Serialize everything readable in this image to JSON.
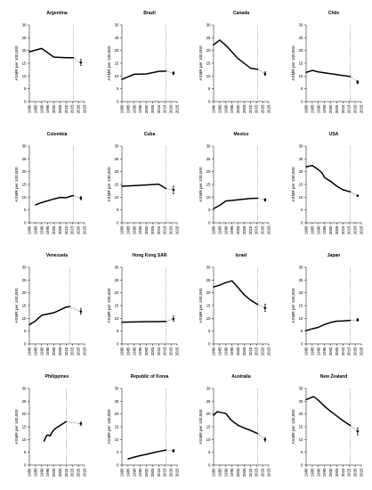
{
  "chart_data": [
    {
      "type": "line",
      "title": "Argentina",
      "ylabel": "ASMR per 100,000",
      "ylim": [
        0,
        30
      ],
      "xlim": [
        1980,
        2025
      ],
      "x_ticks": [
        "1980",
        "1985",
        "1990",
        "1995",
        "2000",
        "2005",
        "2010",
        "2015",
        "2020",
        "2025"
      ],
      "y_ticks": [
        "0",
        "5",
        "10",
        "15",
        "20",
        "25",
        "30"
      ],
      "reference_line_x": 2016,
      "series": [
        {
          "x": [
            1980,
            1990,
            2000,
            2010,
            2016
          ],
          "values": [
            19.5,
            20.8,
            17.4,
            17.2,
            17.2
          ]
        }
      ],
      "projection": {
        "x": [
          2016,
          2022
        ],
        "values": [
          17.2,
          15.3
        ],
        "error": [
          14.2,
          16.5
        ]
      }
    },
    {
      "type": "line",
      "title": "Brazil",
      "ylabel": "ASMR per 100,000",
      "ylim": [
        0,
        30
      ],
      "xlim": [
        1980,
        2025
      ],
      "x_ticks": [
        "1980",
        "1985",
        "1990",
        "1995",
        "2000",
        "2005",
        "2010",
        "2015",
        "2020",
        "2025"
      ],
      "y_ticks": [
        "0",
        "5",
        "10",
        "15",
        "20",
        "25",
        "30"
      ],
      "reference_line_x": 2016,
      "series": [
        {
          "x": [
            1980,
            1990,
            2000,
            2010,
            2016
          ],
          "values": [
            8.7,
            10.7,
            10.8,
            11.8,
            11.9
          ]
        }
      ],
      "projection": {
        "x": [
          2016,
          2022
        ],
        "values": [
          11.9,
          11.1
        ],
        "error": [
          10.5,
          11.7
        ]
      }
    },
    {
      "type": "line",
      "title": "Canada",
      "ylabel": "ASMR per 100,000",
      "ylim": [
        0,
        30
      ],
      "xlim": [
        1980,
        2025
      ],
      "x_ticks": [
        "1980",
        "1985",
        "1990",
        "1995",
        "2000",
        "2005",
        "2010",
        "2015",
        "2020",
        "2025"
      ],
      "y_ticks": [
        "0",
        "5",
        "10",
        "15",
        "20",
        "25",
        "30"
      ],
      "reference_line_x": 2016,
      "series": [
        {
          "x": [
            1980,
            1985,
            1990,
            2000,
            2010,
            2016
          ],
          "values": [
            22.2,
            24.1,
            22.0,
            16.8,
            13.1,
            12.6
          ]
        }
      ],
      "projection": {
        "x": [
          2016,
          2022
        ],
        "values": [
          12.6,
          10.9
        ],
        "error": [
          10.2,
          11.6
        ]
      }
    },
    {
      "type": "line",
      "title": "Chile",
      "ylabel": "ASMR per 100,000",
      "ylim": [
        0,
        30
      ],
      "xlim": [
        1980,
        2025
      ],
      "x_ticks": [
        "1980",
        "1985",
        "1990",
        "1995",
        "2000",
        "2005",
        "2010",
        "2015",
        "2020",
        "2025"
      ],
      "y_ticks": [
        "0",
        "5",
        "10",
        "15",
        "20",
        "25",
        "30"
      ],
      "reference_line_x": 2016,
      "series": [
        {
          "x": [
            1980,
            1985,
            1990,
            2000,
            2010,
            2016
          ],
          "values": [
            11.4,
            12.2,
            11.6,
            10.9,
            10.2,
            9.8
          ]
        }
      ],
      "projection": {
        "x": [
          2016,
          2022
        ],
        "values": [
          9.8,
          7.6
        ],
        "error": [
          7.0,
          8.2
        ]
      }
    },
    {
      "type": "line",
      "title": "Colombia",
      "ylabel": "ASMR per 100,000",
      "ylim": [
        0,
        30
      ],
      "xlim": [
        1980,
        2025
      ],
      "x_ticks": [
        "1980",
        "1985",
        "1990",
        "1995",
        "2000",
        "2005",
        "2010",
        "2015",
        "2020",
        "2025"
      ],
      "y_ticks": [
        "0",
        "5",
        "10",
        "15",
        "20",
        "25",
        "30"
      ],
      "reference_line_x": 2016,
      "series": [
        {
          "x": [
            1985,
            1990,
            2000,
            2005,
            2010,
            2015,
            2016
          ],
          "values": [
            7.0,
            7.9,
            9.3,
            9.9,
            9.8,
            10.6,
            10.6
          ]
        }
      ],
      "projection": {
        "x": [
          2016,
          2022
        ],
        "values": [
          10.6,
          9.6
        ],
        "error": [
          9.0,
          10.3
        ]
      }
    },
    {
      "type": "line",
      "title": "Cuba",
      "ylabel": "ASMR per 100,000",
      "ylim": [
        0,
        30
      ],
      "xlim": [
        1980,
        2025
      ],
      "x_ticks": [
        "1980",
        "1985",
        "1990",
        "1995",
        "2000",
        "2005",
        "2010",
        "2015",
        "2020",
        "2025"
      ],
      "y_ticks": [
        "0",
        "5",
        "10",
        "15",
        "20",
        "25",
        "30"
      ],
      "reference_line_x": 2016,
      "series": [
        {
          "x": [
            1980,
            1990,
            2000,
            2010,
            2016
          ],
          "values": [
            14.3,
            14.5,
            14.8,
            15.1,
            13.4
          ]
        }
      ],
      "projection": {
        "x": [
          2016,
          2022
        ],
        "values": [
          13.4,
          12.9
        ],
        "error": [
          11.3,
          14.3
        ]
      }
    },
    {
      "type": "line",
      "title": "Mexico",
      "ylabel": "ASMR per 100,000",
      "ylim": [
        0,
        30
      ],
      "xlim": [
        1980,
        2025
      ],
      "x_ticks": [
        "1980",
        "1985",
        "1990",
        "1995",
        "2000",
        "2005",
        "2010",
        "2015",
        "2020",
        "2025"
      ],
      "y_ticks": [
        "0",
        "5",
        "10",
        "15",
        "20",
        "25",
        "30"
      ],
      "reference_line_x": 2016,
      "series": [
        {
          "x": [
            1980,
            1985,
            1990,
            2000,
            2010,
            2016
          ],
          "values": [
            5.5,
            6.8,
            8.5,
            9.0,
            9.5,
            9.6
          ]
        }
      ],
      "projection": {
        "x": [
          2016,
          2022
        ],
        "values": [
          9.6,
          9.0
        ],
        "error": [
          8.5,
          9.4
        ]
      }
    },
    {
      "type": "line",
      "title": "USA",
      "ylabel": "ASMR per 100,000",
      "ylim": [
        0,
        30
      ],
      "xlim": [
        1980,
        2025
      ],
      "x_ticks": [
        "1980",
        "1985",
        "1990",
        "1995",
        "2000",
        "2005",
        "2010",
        "2015",
        "2020",
        "2025"
      ],
      "y_ticks": [
        "0",
        "5",
        "10",
        "15",
        "20",
        "25",
        "30"
      ],
      "reference_line_x": 2016,
      "series": [
        {
          "x": [
            1980,
            1985,
            1990,
            1993,
            1995,
            2000,
            2005,
            2010,
            2016
          ],
          "values": [
            21.9,
            22.4,
            20.8,
            19.5,
            17.7,
            16.2,
            14.3,
            12.9,
            12.1
          ]
        }
      ],
      "projection": {
        "x": [
          2016,
          2022
        ],
        "values": [
          12.1,
          10.6
        ],
        "error": [
          10.3,
          10.9
        ]
      }
    },
    {
      "type": "line",
      "title": "Venezuela",
      "ylabel": "ASMR per 100,000",
      "ylim": [
        0,
        30
      ],
      "xlim": [
        1980,
        2025
      ],
      "x_ticks": [
        "1980",
        "1985",
        "1990",
        "1995",
        "2000",
        "2005",
        "2010",
        "2015",
        "2020",
        "2025"
      ],
      "y_ticks": [
        "0",
        "5",
        "10",
        "15",
        "20",
        "25",
        "30"
      ],
      "reference_line_x": 2013,
      "series": [
        {
          "x": [
            1980,
            1985,
            1990,
            2000,
            2010,
            2013
          ],
          "values": [
            7.5,
            9.0,
            11.2,
            12.2,
            14.4,
            14.6
          ]
        }
      ],
      "projection": {
        "x": [
          2013,
          2022
        ],
        "values": [
          14.6,
          12.7
        ],
        "error": [
          11.6,
          13.9
        ]
      }
    },
    {
      "type": "line",
      "title": "Hong Kong SAR",
      "ylabel": "ASMR per 100,000",
      "ylim": [
        0,
        30
      ],
      "xlim": [
        1980,
        2025
      ],
      "x_ticks": [
        "1980",
        "1985",
        "1990",
        "1995",
        "2000",
        "2005",
        "2010",
        "2015",
        "2020",
        "2025"
      ],
      "y_ticks": [
        "0",
        "5",
        "10",
        "15",
        "20",
        "25",
        "30"
      ],
      "reference_line_x": 2016,
      "series": [
        {
          "x": [
            1980,
            1990,
            2000,
            2010,
            2016
          ],
          "values": [
            8.5,
            8.6,
            8.7,
            8.7,
            8.8
          ]
        }
      ],
      "projection": {
        "x": [
          2016,
          2022
        ],
        "values": [
          8.8,
          9.8
        ],
        "error": [
          8.8,
          10.9
        ]
      }
    },
    {
      "type": "line",
      "title": "Israel",
      "ylabel": "ASMR per 100,000",
      "ylim": [
        0,
        30
      ],
      "xlim": [
        1980,
        2025
      ],
      "x_ticks": [
        "1980",
        "1985",
        "1990",
        "1995",
        "2000",
        "2005",
        "2010",
        "2015",
        "2020",
        "2025"
      ],
      "y_ticks": [
        "0",
        "5",
        "10",
        "15",
        "20",
        "25",
        "30"
      ],
      "reference_line_x": 2016,
      "series": [
        {
          "x": [
            1980,
            1985,
            1990,
            1995,
            2000,
            2005,
            2010,
            2016
          ],
          "values": [
            22.3,
            23.0,
            24.0,
            24.7,
            22.0,
            19.2,
            17.2,
            15.4
          ]
        }
      ],
      "projection": {
        "x": [
          2016,
          2022
        ],
        "values": [
          15.4,
          14.1
        ],
        "error": [
          12.8,
          15.5
        ]
      }
    },
    {
      "type": "line",
      "title": "Japan",
      "ylabel": "ASMR per 100,000",
      "ylim": [
        0,
        30
      ],
      "xlim": [
        1980,
        2025
      ],
      "x_ticks": [
        "1980",
        "1985",
        "1990",
        "1995",
        "2000",
        "2005",
        "2010",
        "2015",
        "2020",
        "2025"
      ],
      "y_ticks": [
        "0",
        "5",
        "10",
        "15",
        "20",
        "25",
        "30"
      ],
      "reference_line_x": 2016,
      "series": [
        {
          "x": [
            1980,
            1985,
            1990,
            1995,
            2000,
            2005,
            2010,
            2016
          ],
          "values": [
            5.2,
            5.9,
            6.5,
            7.6,
            8.4,
            8.9,
            9.0,
            9.2
          ]
        }
      ],
      "projection": {
        "x": [
          2016,
          2022
        ],
        "values": [
          9.2,
          9.4
        ],
        "error": [
          8.9,
          9.9
        ]
      }
    },
    {
      "type": "line",
      "title": "Philippines",
      "ylabel": "ASMR per 100,000",
      "ylim": [
        0,
        30
      ],
      "xlim": [
        1980,
        2025
      ],
      "x_ticks": [
        "1980",
        "1985",
        "1990",
        "1995",
        "2000",
        "2005",
        "2010",
        "2015",
        "2020",
        "2025"
      ],
      "y_ticks": [
        "0",
        "5",
        "10",
        "15",
        "20",
        "25",
        "30"
      ],
      "reference_line_x": 2010,
      "series": [
        {
          "x": [
            1992,
            1993,
            1994,
            1995,
            1997,
            1998,
            2000,
            2002,
            2004,
            2006,
            2008,
            2010
          ],
          "values": [
            9.4,
            10.5,
            11.5,
            11.8,
            11.4,
            12.5,
            13.8,
            14.6,
            15.2,
            15.8,
            16.4,
            17.0
          ]
        }
      ],
      "projection": {
        "x": [
          2010,
          2022
        ],
        "values": [
          17.0,
          16.2
        ],
        "error": [
          15.6,
          16.9
        ]
      }
    },
    {
      "type": "line",
      "title": "Republic of Korea",
      "ylabel": "ASMR per 100,000",
      "ylim": [
        0,
        30
      ],
      "xlim": [
        1980,
        2025
      ],
      "x_ticks": [
        "1980",
        "1985",
        "1990",
        "1995",
        "2000",
        "2005",
        "2010",
        "2015",
        "2020",
        "2025"
      ],
      "y_ticks": [
        "0",
        "5",
        "10",
        "15",
        "20",
        "25",
        "30"
      ],
      "reference_line_x": 2016,
      "series": [
        {
          "x": [
            1985,
            1990,
            1995,
            2000,
            2005,
            2010,
            2016
          ],
          "values": [
            2.4,
            3.1,
            3.7,
            4.2,
            4.8,
            5.3,
            5.9
          ]
        }
      ],
      "projection": {
        "x": [
          2016,
          2022
        ],
        "values": [
          5.9,
          5.6
        ],
        "error": [
          5.1,
          6.1
        ]
      }
    },
    {
      "type": "line",
      "title": "Australia",
      "ylabel": "ASMR per 100,000",
      "ylim": [
        0,
        30
      ],
      "xlim": [
        1980,
        2025
      ],
      "x_ticks": [
        "1980",
        "1985",
        "1990",
        "1995",
        "2000",
        "2005",
        "2010",
        "2015",
        "2020",
        "2025"
      ],
      "y_ticks": [
        "0",
        "5",
        "10",
        "15",
        "20",
        "25",
        "30"
      ],
      "reference_line_x": 2016,
      "series": [
        {
          "x": [
            1980,
            1983,
            1986,
            1990,
            1994,
            1997,
            2000,
            2005,
            2010,
            2016
          ],
          "values": [
            19.5,
            20.9,
            20.6,
            20.2,
            17.8,
            16.6,
            15.6,
            14.5,
            13.6,
            12.3
          ]
        }
      ],
      "projection": {
        "x": [
          2016,
          2022
        ],
        "values": [
          12.3,
          10.0
        ],
        "error": [
          9.3,
          10.8
        ]
      }
    },
    {
      "type": "line",
      "title": "New Zealand",
      "ylabel": "ASMR per 100,000",
      "ylim": [
        0,
        30
      ],
      "xlim": [
        1980,
        2025
      ],
      "x_ticks": [
        "1980",
        "1985",
        "1990",
        "1995",
        "2000",
        "2005",
        "2010",
        "2015",
        "2020",
        "2025"
      ],
      "y_ticks": [
        "0",
        "5",
        "10",
        "15",
        "20",
        "25",
        "30"
      ],
      "reference_line_x": 2016,
      "series": [
        {
          "x": [
            1980,
            1986,
            1990,
            1995,
            2000,
            2005,
            2010,
            2016
          ],
          "values": [
            25.6,
            26.8,
            25.4,
            23.0,
            21.0,
            19.2,
            17.4,
            15.5
          ]
        }
      ],
      "projection": {
        "x": [
          2016,
          2022
        ],
        "values": [
          15.5,
          13.2
        ],
        "error": [
          11.8,
          14.6
        ]
      }
    }
  ]
}
